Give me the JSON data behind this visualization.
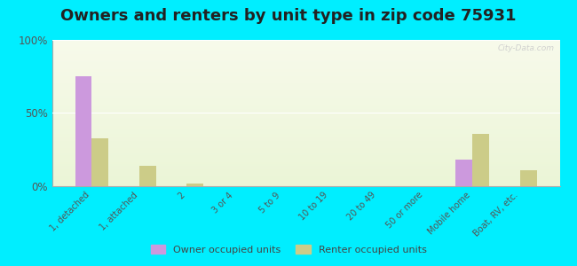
{
  "title": "Owners and renters by unit type in zip code 75931",
  "categories": [
    "1, detached",
    "1, attached",
    "2",
    "3 or 4",
    "5 to 9",
    "10 to 19",
    "20 to 49",
    "50 or more",
    "Mobile home",
    "Boat, RV, etc."
  ],
  "owner_values": [
    75,
    0,
    0,
    0,
    0,
    0,
    0,
    0,
    18,
    0
  ],
  "renter_values": [
    33,
    14,
    2,
    0,
    0,
    0,
    0,
    0,
    36,
    11
  ],
  "owner_color": "#cc99dd",
  "renter_color": "#cccc88",
  "background_color": "#00eeff",
  "ylim": [
    0,
    100
  ],
  "yticks": [
    0,
    50,
    100
  ],
  "ytick_labels": [
    "0%",
    "50%",
    "100%"
  ],
  "bar_width": 0.35,
  "legend_owner": "Owner occupied units",
  "legend_renter": "Renter occupied units",
  "title_fontsize": 13,
  "tick_fontsize": 7,
  "watermark": "City-Data.com"
}
